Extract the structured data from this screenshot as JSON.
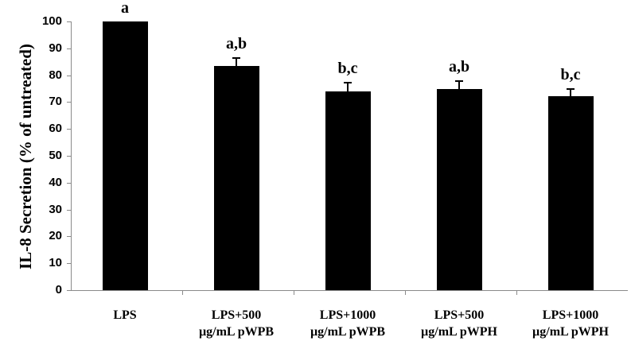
{
  "chart_data": {
    "type": "bar",
    "title": "",
    "xlabel": "",
    "ylabel": "IL-8 Secretion (% of untreated)",
    "ylim": [
      0,
      100
    ],
    "yticks": [
      "0",
      "10",
      "20",
      "30",
      "40",
      "50",
      "60",
      "70",
      "80",
      "90",
      "100"
    ],
    "grid": false,
    "legend": null,
    "categories": [
      {
        "line1": "LPS",
        "line2": ""
      },
      {
        "line1": "LPS+500",
        "line2": "µg/mL pWPB"
      },
      {
        "line1": "LPS+1000",
        "line2": "µg/mL pWPB"
      },
      {
        "line1": "LPS+500",
        "line2": "µg/mL pWPH"
      },
      {
        "line1": "LPS+1000",
        "line2": "µg/mL pWPH"
      }
    ],
    "values": [
      100,
      83.4,
      74.0,
      74.8,
      72.2
    ],
    "errors": [
      0,
      3.2,
      3.5,
      3.3,
      3.0
    ],
    "significance_labels": [
      "a",
      "a,b",
      "b,c",
      "a,b",
      "b,c"
    ],
    "bar_color": "#000000",
    "axis_color": "#8a8a8a"
  }
}
